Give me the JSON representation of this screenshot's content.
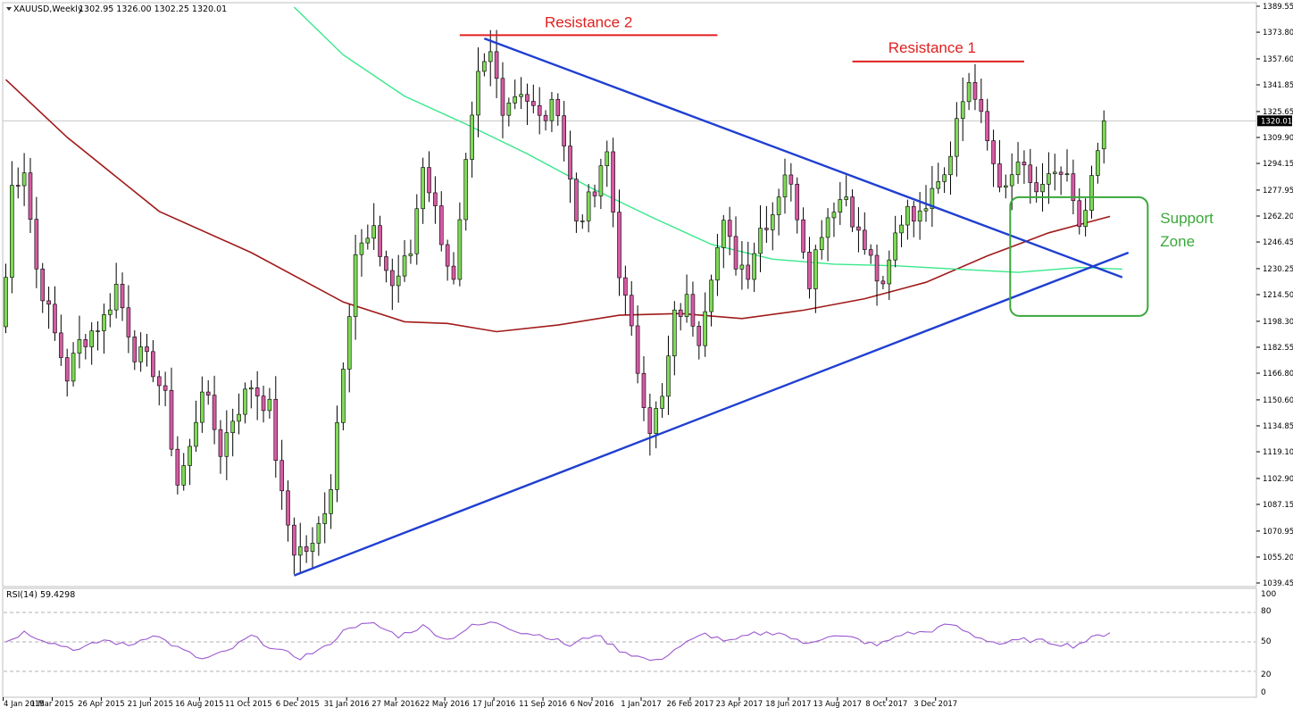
{
  "header": {
    "symbol": "XAUUSD,Weekly",
    "ohlc": "1302.95 1326.00 1302.25 1320.01"
  },
  "rsi": {
    "label": "RSI(14) 59.4298",
    "levels": [
      "100",
      "80",
      "50",
      "20",
      "0"
    ]
  },
  "colors": {
    "bull": "#7ed957",
    "bear": "#d65aa3",
    "ma_long": "#a11a1a",
    "ma_mid": "#38e88a",
    "trend": "#1f3fd1",
    "resistance": "#e02020",
    "support": "#3aa83a",
    "rsi_line": "#9b59d0"
  },
  "chart_data": {
    "type": "candlestick",
    "symbol": "XAUUSD",
    "timeframe": "Weekly",
    "ylim": [
      1039.45,
      1389.55
    ],
    "y_ticks": [
      "1389.55",
      "1373.80",
      "1357.60",
      "1341.85",
      "1325.65",
      "1309.90",
      "1294.15",
      "1277.95",
      "1262.20",
      "1246.45",
      "1230.25",
      "1214.50",
      "1198.30",
      "1182.55",
      "1166.80",
      "1150.60",
      "1134.85",
      "1119.10",
      "1102.90",
      "1087.15",
      "1070.95",
      "1055.20",
      "1039.45"
    ],
    "current_price": "1320.01",
    "x_ticks": [
      "4 Jan 2015",
      "1 Mar 2015",
      "26 Apr 2015",
      "21 Jun 2015",
      "16 Aug 2015",
      "11 Oct 2015",
      "6 Dec 2015",
      "31 Jan 2016",
      "27 Mar 2016",
      "22 May 2016",
      "17 Jul 2016",
      "11 Sep 2016",
      "6 Nov 2016",
      "1 Jan 2017",
      "26 Feb 2017",
      "23 Apr 2017",
      "18 Jun 2017",
      "13 Aug 2017",
      "8 Oct 2017",
      "3 Dec 2017"
    ],
    "close_path": [
      {
        "week": 0,
        "close": 1225
      },
      {
        "week": 1,
        "close": 1280
      },
      {
        "week": 3,
        "close": 1292
      },
      {
        "week": 5,
        "close": 1230
      },
      {
        "week": 8,
        "close": 1190
      },
      {
        "week": 10,
        "close": 1165
      },
      {
        "week": 12,
        "close": 1185
      },
      {
        "week": 16,
        "close": 1200
      },
      {
        "week": 18,
        "close": 1220
      },
      {
        "week": 21,
        "close": 1180
      },
      {
        "week": 24,
        "close": 1170
      },
      {
        "week": 26,
        "close": 1150
      },
      {
        "week": 28,
        "close": 1100
      },
      {
        "week": 30,
        "close": 1120
      },
      {
        "week": 32,
        "close": 1160
      },
      {
        "week": 35,
        "close": 1120
      },
      {
        "week": 37,
        "close": 1140
      },
      {
        "week": 40,
        "close": 1160
      },
      {
        "week": 43,
        "close": 1145
      },
      {
        "week": 45,
        "close": 1090
      },
      {
        "week": 47,
        "close": 1060
      },
      {
        "week": 50,
        "close": 1060
      },
      {
        "week": 53,
        "close": 1100
      },
      {
        "week": 55,
        "close": 1175
      },
      {
        "week": 57,
        "close": 1240
      },
      {
        "week": 60,
        "close": 1250
      },
      {
        "week": 63,
        "close": 1220
      },
      {
        "week": 66,
        "close": 1240
      },
      {
        "week": 68,
        "close": 1295
      },
      {
        "week": 71,
        "close": 1250
      },
      {
        "week": 73,
        "close": 1220
      },
      {
        "week": 75,
        "close": 1290
      },
      {
        "week": 77,
        "close": 1345
      },
      {
        "week": 79,
        "close": 1360
      },
      {
        "week": 81,
        "close": 1330
      },
      {
        "week": 84,
        "close": 1340
      },
      {
        "week": 87,
        "close": 1320
      },
      {
        "week": 90,
        "close": 1330
      },
      {
        "week": 93,
        "close": 1260
      },
      {
        "week": 96,
        "close": 1275
      },
      {
        "week": 98,
        "close": 1300
      },
      {
        "week": 100,
        "close": 1230
      },
      {
        "week": 103,
        "close": 1170
      },
      {
        "week": 105,
        "close": 1135
      },
      {
        "week": 107,
        "close": 1150
      },
      {
        "week": 109,
        "close": 1200
      },
      {
        "week": 111,
        "close": 1210
      },
      {
        "week": 113,
        "close": 1190
      },
      {
        "week": 115,
        "close": 1230
      },
      {
        "week": 117,
        "close": 1255
      },
      {
        "week": 119,
        "close": 1235
      },
      {
        "week": 121,
        "close": 1230
      },
      {
        "week": 123,
        "close": 1255
      },
      {
        "week": 125,
        "close": 1265
      },
      {
        "week": 127,
        "close": 1290
      },
      {
        "week": 129,
        "close": 1265
      },
      {
        "week": 131,
        "close": 1225
      },
      {
        "week": 133,
        "close": 1255
      },
      {
        "week": 135,
        "close": 1270
      },
      {
        "week": 137,
        "close": 1275
      },
      {
        "week": 139,
        "close": 1250
      },
      {
        "week": 141,
        "close": 1235
      },
      {
        "week": 143,
        "close": 1215
      },
      {
        "week": 145,
        "close": 1250
      },
      {
        "week": 147,
        "close": 1270
      },
      {
        "week": 149,
        "close": 1260
      },
      {
        "week": 151,
        "close": 1285
      },
      {
        "week": 153,
        "close": 1290
      },
      {
        "week": 155,
        "close": 1320
      },
      {
        "week": 157,
        "close": 1345
      },
      {
        "week": 159,
        "close": 1320
      },
      {
        "week": 161,
        "close": 1295
      },
      {
        "week": 163,
        "close": 1275
      },
      {
        "week": 165,
        "close": 1295
      },
      {
        "week": 167,
        "close": 1280
      },
      {
        "week": 169,
        "close": 1275
      },
      {
        "week": 171,
        "close": 1290
      },
      {
        "week": 173,
        "close": 1285
      },
      {
        "week": 175,
        "close": 1250
      },
      {
        "week": 177,
        "close": 1280
      },
      {
        "week": 179,
        "close": 1320
      }
    ],
    "ma_long": [
      [
        0,
        1345
      ],
      [
        10,
        1310
      ],
      [
        25,
        1265
      ],
      [
        40,
        1240
      ],
      [
        55,
        1210
      ],
      [
        65,
        1198
      ],
      [
        72,
        1197
      ],
      [
        80,
        1192
      ],
      [
        90,
        1196
      ],
      [
        100,
        1202
      ],
      [
        110,
        1203
      ],
      [
        120,
        1200
      ],
      [
        130,
        1205
      ],
      [
        140,
        1212
      ],
      [
        150,
        1222
      ],
      [
        160,
        1238
      ],
      [
        170,
        1252
      ],
      [
        180,
        1262
      ]
    ],
    "ma_mid": [
      [
        47,
        1389
      ],
      [
        55,
        1360
      ],
      [
        65,
        1335
      ],
      [
        75,
        1318
      ],
      [
        85,
        1300
      ],
      [
        95,
        1280
      ],
      [
        105,
        1262
      ],
      [
        115,
        1245
      ],
      [
        125,
        1236
      ],
      [
        135,
        1233
      ],
      [
        145,
        1232
      ],
      [
        155,
        1230
      ],
      [
        165,
        1228
      ],
      [
        175,
        1231
      ],
      [
        182,
        1230
      ]
    ],
    "trendlines": [
      {
        "name": "descending",
        "from": [
          78,
          1370
        ],
        "to": [
          182,
          1225
        ]
      },
      {
        "name": "ascending",
        "from": [
          47,
          1044
        ],
        "to": [
          183,
          1240
        ]
      }
    ],
    "annotations": [
      {
        "text": "Resistance 2",
        "level": 1372
      },
      {
        "text": "Resistance 1",
        "level": 1356
      },
      {
        "text": "Support Zone",
        "range": [
          1207,
          1265
        ]
      }
    ],
    "rsi": {
      "period": 14,
      "current": 59.4298,
      "ylim": [
        0,
        100
      ],
      "levels": [
        80,
        50,
        20
      ],
      "values": [
        [
          0,
          50
        ],
        [
          3,
          60
        ],
        [
          8,
          48
        ],
        [
          12,
          42
        ],
        [
          16,
          52
        ],
        [
          20,
          46
        ],
        [
          24,
          58
        ],
        [
          28,
          44
        ],
        [
          32,
          32
        ],
        [
          36,
          40
        ],
        [
          40,
          56
        ],
        [
          44,
          42
        ],
        [
          48,
          34
        ],
        [
          52,
          44
        ],
        [
          56,
          66
        ],
        [
          60,
          68
        ],
        [
          64,
          56
        ],
        [
          68,
          66
        ],
        [
          72,
          52
        ],
        [
          76,
          66
        ],
        [
          80,
          70
        ],
        [
          84,
          60
        ],
        [
          88,
          56
        ],
        [
          92,
          46
        ],
        [
          96,
          58
        ],
        [
          100,
          42
        ],
        [
          104,
          33
        ],
        [
          106,
          30
        ],
        [
          110,
          46
        ],
        [
          114,
          58
        ],
        [
          118,
          50
        ],
        [
          122,
          58
        ],
        [
          126,
          60
        ],
        [
          130,
          48
        ],
        [
          134,
          56
        ],
        [
          138,
          54
        ],
        [
          142,
          46
        ],
        [
          146,
          58
        ],
        [
          150,
          60
        ],
        [
          154,
          68
        ],
        [
          158,
          56
        ],
        [
          162,
          48
        ],
        [
          166,
          52
        ],
        [
          170,
          50
        ],
        [
          174,
          46
        ],
        [
          178,
          56
        ],
        [
          180,
          59.4
        ]
      ]
    }
  }
}
